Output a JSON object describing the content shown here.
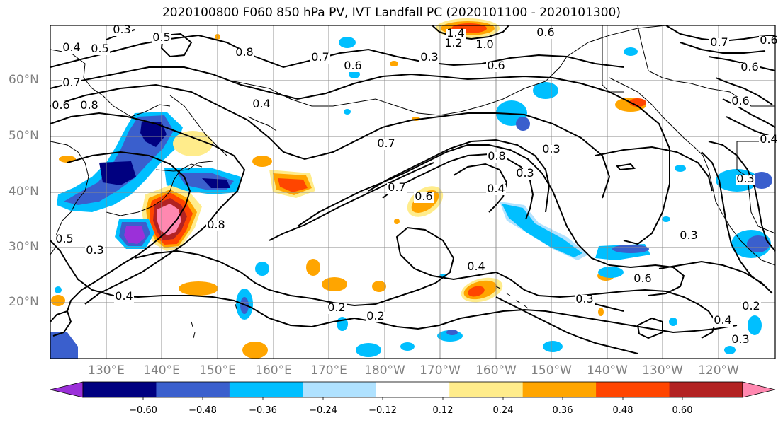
{
  "title": "2020100800 F060 850 hPa PV, IVT Landfall PC (2020101100 - 2020101300)",
  "lat_labels": [
    "60°N",
    "50°N",
    "40°N",
    "30°N",
    "20°N"
  ],
  "lon_labels": [
    "130°E",
    "140°E",
    "150°E",
    "160°E",
    "170°E",
    "180°W",
    "170°W",
    "160°W",
    "150°W",
    "140°W",
    "130°W",
    "120°W"
  ],
  "contour_labels": [
    "0.3",
    "0.5",
    "0.4",
    "0.5",
    "0.8",
    "0.7",
    "0.6",
    "0.3",
    "1.4",
    "1.2",
    "1.0",
    "0.6",
    "0.6",
    "0.7",
    "0.6",
    "0.7",
    "0.8",
    "0.6",
    "0.4",
    "0.3",
    "0.8",
    "0.7",
    "0.3",
    "0.4",
    "0.6",
    "0.7",
    "0.8",
    "0.5",
    "0.3",
    "0.6",
    "0.4",
    "0.3",
    "0.4",
    "0.2",
    "0.2",
    "0.2",
    "0.4",
    "0.3",
    "0.3",
    "0.6",
    "0.6",
    "0.3",
    "0.4"
  ],
  "colorbar": {
    "ticks": [
      "−0.60",
      "−0.48",
      "−0.36",
      "−0.24",
      "−0.12",
      "0.12",
      "0.24",
      "0.36",
      "0.48",
      "0.60"
    ],
    "colors": [
      "#9b30d9",
      "#000080",
      "#3a5fcd",
      "#00bfff",
      "#b0e2ff",
      "#ffffff",
      "#ffec8b",
      "#ffa500",
      "#ff4500",
      "#b22222",
      "#ff88b0"
    ]
  },
  "colors": {
    "purple": "#9b30d9",
    "navy": "#000080",
    "royal": "#3a5fcd",
    "sky": "#00bfff",
    "lightblue": "#b0e2ff",
    "yellow": "#ffec8b",
    "orange": "#ffa500",
    "redorange": "#ff4500",
    "firebrick": "#b22222",
    "pink": "#ff88b0"
  }
}
